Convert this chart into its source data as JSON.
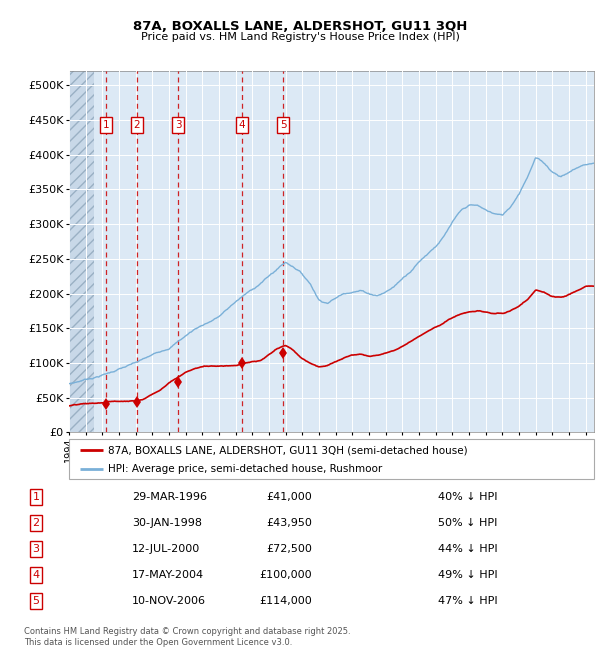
{
  "title1": "87A, BOXALLS LANE, ALDERSHOT, GU11 3QH",
  "title2": "Price paid vs. HM Land Registry's House Price Index (HPI)",
  "xlim_start": 1994.0,
  "xlim_end": 2025.5,
  "ylim_min": 0,
  "ylim_max": 520000,
  "yticks": [
    0,
    50000,
    100000,
    150000,
    200000,
    250000,
    300000,
    350000,
    400000,
    450000,
    500000
  ],
  "ytick_labels": [
    "£0",
    "£50K",
    "£100K",
    "£150K",
    "£200K",
    "£250K",
    "£300K",
    "£350K",
    "£400K",
    "£450K",
    "£500K"
  ],
  "xticks": [
    1994,
    1995,
    1996,
    1997,
    1998,
    1999,
    2000,
    2001,
    2002,
    2003,
    2004,
    2005,
    2006,
    2007,
    2008,
    2009,
    2010,
    2011,
    2012,
    2013,
    2014,
    2015,
    2016,
    2017,
    2018,
    2019,
    2020,
    2021,
    2022,
    2023,
    2024,
    2025
  ],
  "sale_dates": [
    1996.24,
    1998.08,
    2000.54,
    2004.38,
    2006.86
  ],
  "sale_prices": [
    41000,
    43950,
    72500,
    100000,
    114000
  ],
  "sale_labels": [
    "1",
    "2",
    "3",
    "4",
    "5"
  ],
  "sale_dates_text": [
    "29-MAR-1996",
    "30-JAN-1998",
    "12-JUL-2000",
    "17-MAY-2004",
    "10-NOV-2006"
  ],
  "sale_prices_text": [
    "£41,000",
    "£43,950",
    "£72,500",
    "£100,000",
    "£114,000"
  ],
  "sale_pct_text": [
    "40% ↓ HPI",
    "50% ↓ HPI",
    "44% ↓ HPI",
    "49% ↓ HPI",
    "47% ↓ HPI"
  ],
  "legend1_label": "87A, BOXALLS LANE, ALDERSHOT, GU11 3QH (semi-detached house)",
  "legend2_label": "HPI: Average price, semi-detached house, Rushmoor",
  "footer": "Contains HM Land Registry data © Crown copyright and database right 2025.\nThis data is licensed under the Open Government Licence v3.0.",
  "plot_bg_color": "#dce9f5",
  "grid_color": "#ffffff",
  "red_line_color": "#cc0000",
  "blue_line_color": "#7ab0d8",
  "vline_color": "#cc0000",
  "marker_color": "#cc0000",
  "label_box_color": "#cc0000",
  "label_text_color": "#cc0000",
  "hpi_anchors_x": [
    1994,
    1994.5,
    1995,
    1995.5,
    1996,
    1996.5,
    1997,
    1997.5,
    1998,
    1998.5,
    1999,
    1999.5,
    2000,
    2000.5,
    2001,
    2001.5,
    2002,
    2002.5,
    2003,
    2003.5,
    2004,
    2004.5,
    2005,
    2005.5,
    2006,
    2006.25,
    2006.5,
    2006.75,
    2007,
    2007.25,
    2007.5,
    2007.75,
    2008,
    2008.5,
    2009,
    2009.5,
    2010,
    2010.5,
    2011,
    2011.5,
    2012,
    2012.5,
    2013,
    2013.5,
    2014,
    2014.5,
    2015,
    2015.5,
    2016,
    2016.5,
    2017,
    2017.5,
    2018,
    2018.5,
    2019,
    2019.5,
    2020,
    2020.5,
    2021,
    2021.5,
    2022,
    2022.5,
    2023,
    2023.5,
    2024,
    2024.5,
    2025,
    2025.5
  ],
  "hpi_anchors_y": [
    70000,
    73000,
    77000,
    80000,
    84000,
    88000,
    93000,
    97000,
    101000,
    106000,
    111000,
    117000,
    123000,
    132000,
    141000,
    150000,
    157000,
    163000,
    170000,
    180000,
    191000,
    200000,
    208000,
    218000,
    228000,
    233000,
    238000,
    244000,
    248000,
    245000,
    242000,
    238000,
    232000,
    218000,
    196000,
    193000,
    200000,
    207000,
    211000,
    213000,
    209000,
    207000,
    212000,
    220000,
    232000,
    244000,
    258000,
    270000,
    282000,
    296000,
    315000,
    330000,
    338000,
    337000,
    330000,
    325000,
    322000,
    335000,
    355000,
    380000,
    408000,
    400000,
    388000,
    382000,
    388000,
    395000,
    400000,
    402000
  ],
  "red_anchors_x": [
    1994,
    1994.5,
    1995,
    1995.5,
    1996,
    1996.25,
    1996.5,
    1997,
    1997.5,
    1998,
    1998.5,
    1999,
    1999.5,
    2000,
    2000.5,
    2001,
    2001.5,
    2002,
    2002.5,
    2003,
    2003.5,
    2004,
    2004.25,
    2004.5,
    2005,
    2005.5,
    2006,
    2006.5,
    2006.75,
    2007,
    2007.25,
    2007.5,
    2007.75,
    2008,
    2008.5,
    2009,
    2009.5,
    2010,
    2010.5,
    2011,
    2011.5,
    2012,
    2012.5,
    2013,
    2013.5,
    2014,
    2014.5,
    2015,
    2015.5,
    2016,
    2016.5,
    2017,
    2017.5,
    2018,
    2018.5,
    2019,
    2019.5,
    2020,
    2020.5,
    2021,
    2021.5,
    2022,
    2022.5,
    2023,
    2023.5,
    2024,
    2024.5,
    2025,
    2025.5
  ],
  "red_anchors_y": [
    38000,
    39000,
    40000,
    40500,
    41000,
    42000,
    43000,
    43000,
    43500,
    43950,
    48000,
    55000,
    62000,
    72500,
    80000,
    88000,
    93000,
    96000,
    97500,
    98000,
    99000,
    100000,
    101000,
    103000,
    105000,
    106000,
    114000,
    122000,
    124000,
    126000,
    123000,
    118000,
    112000,
    107000,
    100000,
    96000,
    98000,
    103000,
    108000,
    112000,
    114000,
    112000,
    113000,
    116000,
    120000,
    127000,
    135000,
    143000,
    150000,
    157000,
    163000,
    170000,
    175000,
    178000,
    179000,
    177000,
    175000,
    174000,
    178000,
    185000,
    193000,
    208000,
    205000,
    198000,
    196000,
    200000,
    205000,
    210000,
    211000
  ]
}
